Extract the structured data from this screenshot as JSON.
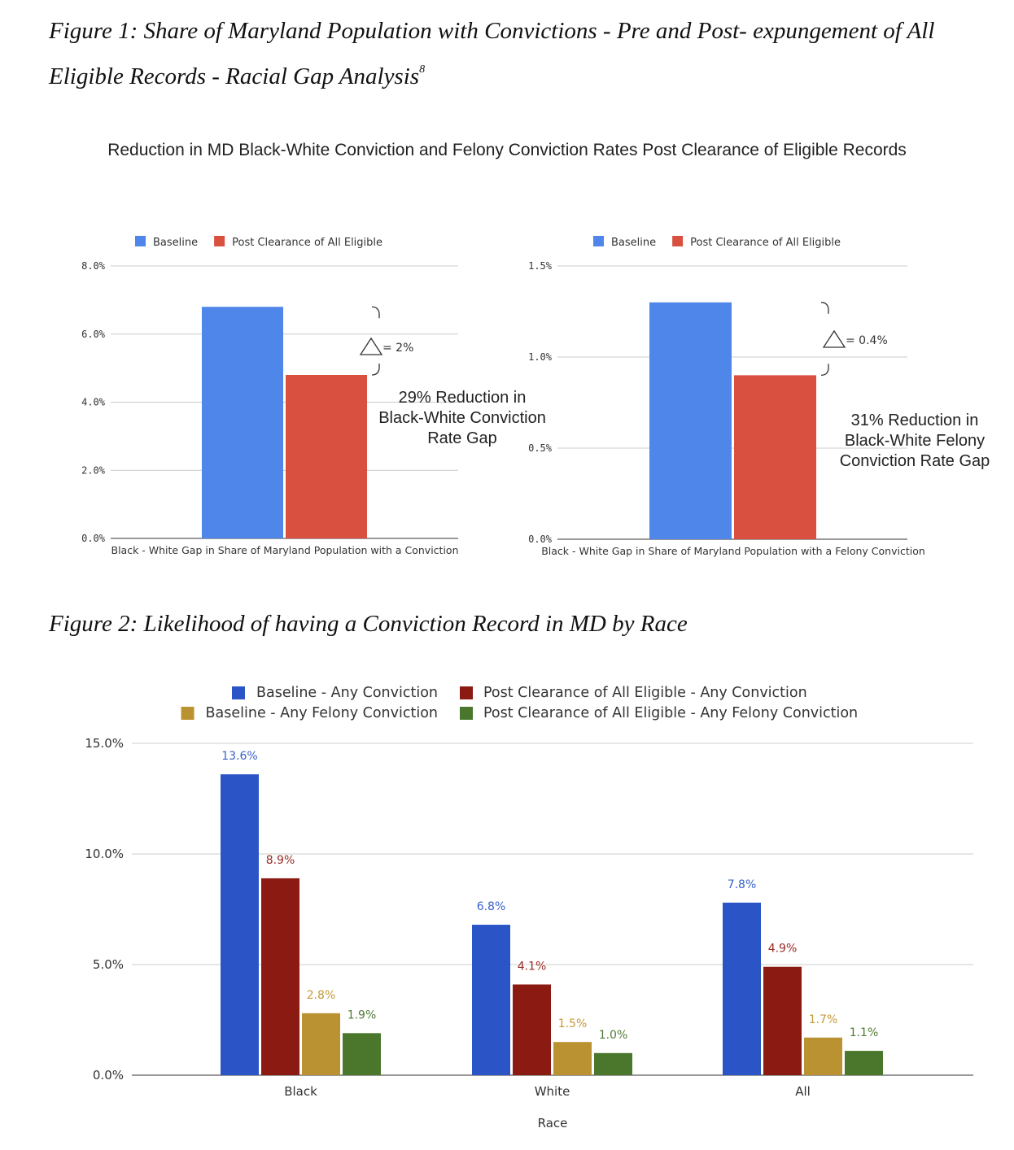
{
  "figure1": {
    "caption_line1": "Figure 1: Share of Maryland Population with Convictions - Pre and Post- expungement of All",
    "caption_line2": "Eligible Records - Racial Gap Analysis",
    "footnote_marker": "8",
    "title": "Reduction in MD Black-White Conviction and Felony Conviction Rates Post Clearance of Eligible Records"
  },
  "figure2": {
    "caption": "Figure 2: Likelihood of having a Conviction Record in MD by Race"
  },
  "colors": {
    "baseline_light": "#4f86ea",
    "post_light": "#d95040",
    "baseline_any": "#2b55c7",
    "post_any": "#8b1a12",
    "baseline_felony": "#bb9232",
    "post_felony": "#4a772c"
  },
  "chart_data": [
    {
      "type": "bar",
      "categories": [
        "Black - White Gap in Share of Maryland Population with a Conviction"
      ],
      "series": [
        {
          "name": "Baseline",
          "values": [
            6.8
          ]
        },
        {
          "name": "Post Clearance of All Eligible",
          "values": [
            4.8
          ]
        }
      ],
      "ylim": [
        0,
        8
      ],
      "yticks": [
        "0.0%",
        "2.0%",
        "4.0%",
        "6.0%",
        "8.0%"
      ],
      "ytick_values": [
        0,
        2,
        4,
        6,
        8
      ],
      "legend": "top",
      "grid": true,
      "delta_label": "= 2%",
      "annotation": [
        "29% Reduction in",
        "Black-White Conviction",
        "Rate Gap"
      ]
    },
    {
      "type": "bar",
      "categories": [
        "Black - White Gap in Share of Maryland Population with a Felony Conviction"
      ],
      "series": [
        {
          "name": "Baseline",
          "values": [
            1.3
          ]
        },
        {
          "name": "Post Clearance of All Eligible",
          "values": [
            0.9
          ]
        }
      ],
      "ylim": [
        0,
        1.5
      ],
      "yticks": [
        "0.0%",
        "0.5%",
        "1.0%",
        "1.5%"
      ],
      "ytick_values": [
        0,
        0.5,
        1.0,
        1.5
      ],
      "legend": "top",
      "grid": true,
      "delta_label": "= 0.4%",
      "annotation": [
        "31% Reduction in",
        "Black-White Felony",
        "Conviction Rate Gap"
      ]
    },
    {
      "type": "bar",
      "categories": [
        "Black",
        "White",
        "All"
      ],
      "xlabel": "Race",
      "series": [
        {
          "name": "Baseline - Any Conviction",
          "values": [
            13.6,
            6.8,
            7.8
          ],
          "labels": [
            "13.6%",
            "6.8%",
            "7.8%"
          ]
        },
        {
          "name": "Post Clearance of All Eligible - Any Conviction",
          "values": [
            8.9,
            4.1,
            4.9
          ],
          "labels": [
            "8.9%",
            "4.1%",
            "4.9%"
          ]
        },
        {
          "name": "Baseline - Any Felony Conviction",
          "values": [
            2.8,
            1.5,
            1.7
          ],
          "labels": [
            "2.8%",
            "1.5%",
            "1.7%"
          ]
        },
        {
          "name": "Post Clearance of All Eligible - Any Felony Conviction",
          "values": [
            1.9,
            1.0,
            1.1
          ],
          "labels": [
            "1.9%",
            "1.0%",
            "1.1%"
          ]
        }
      ],
      "ylim": [
        0,
        15
      ],
      "yticks": [
        "0.0%",
        "5.0%",
        "10.0%",
        "15.0%"
      ],
      "ytick_values": [
        0,
        5,
        10,
        15
      ],
      "legend": "top",
      "grid": true
    }
  ]
}
